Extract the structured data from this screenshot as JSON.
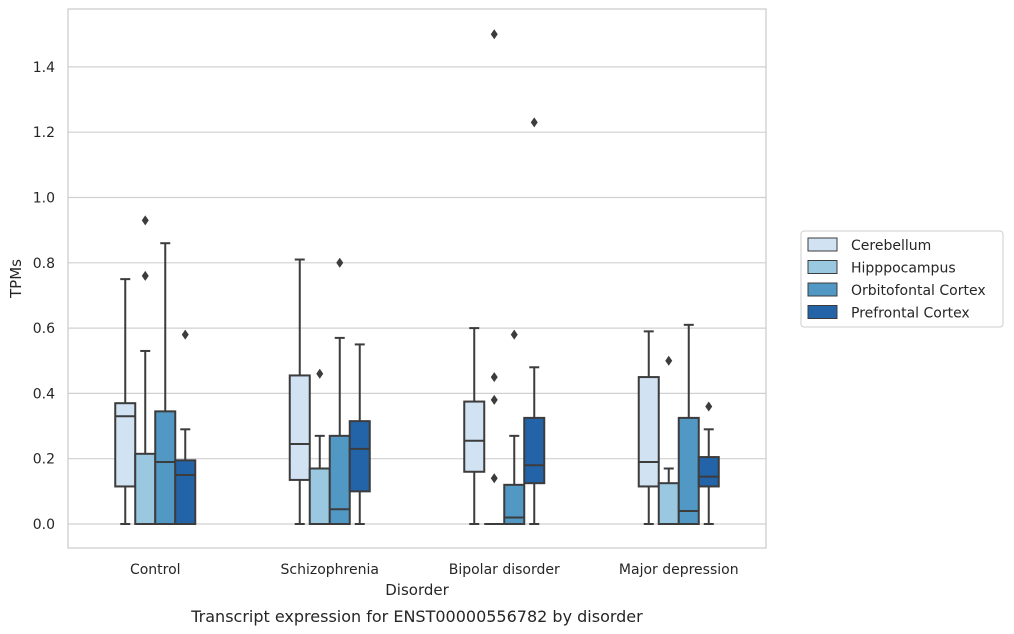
{
  "chart_data": {
    "type": "box",
    "title": "",
    "caption": "Transcript expression for ENST00000556782 by disorder",
    "xlabel": "Disorder",
    "ylabel": "TPMs",
    "ylim": [
      -0.075,
      1.58
    ],
    "yticks": [
      "0.0",
      "0.2",
      "0.4",
      "0.6",
      "0.8",
      "1.0",
      "1.2",
      "1.4"
    ],
    "grid": true,
    "legend_position": "right",
    "categories": [
      "Control",
      "Schizophrenia",
      "Bipolar disorder",
      "Major depression"
    ],
    "series": [
      {
        "name": "Cerebellum",
        "color": "#d1e2f2",
        "boxes": [
          {
            "whislo": 0.0,
            "q1": 0.115,
            "med": 0.33,
            "q3": 0.37,
            "whishi": 0.75,
            "fliers": []
          },
          {
            "whislo": 0.0,
            "q1": 0.135,
            "med": 0.245,
            "q3": 0.455,
            "whishi": 0.81,
            "fliers": []
          },
          {
            "whislo": 0.0,
            "q1": 0.16,
            "med": 0.255,
            "q3": 0.375,
            "whishi": 0.6,
            "fliers": []
          },
          {
            "whislo": 0.0,
            "q1": 0.115,
            "med": 0.19,
            "q3": 0.45,
            "whishi": 0.59,
            "fliers": []
          }
        ]
      },
      {
        "name": "Hipppocampus",
        "color": "#9ac8e0",
        "boxes": [
          {
            "whislo": 0.0,
            "q1": 0.0,
            "med": 0.0,
            "q3": 0.215,
            "whishi": 0.53,
            "fliers": [
              0.76,
              0.93
            ]
          },
          {
            "whislo": 0.0,
            "q1": 0.0,
            "med": 0.0,
            "q3": 0.17,
            "whishi": 0.27,
            "fliers": [
              0.46
            ]
          },
          {
            "whislo": 0.0,
            "q1": 0.0,
            "med": 0.0,
            "q3": 0.0,
            "whishi": 0.0,
            "fliers": [
              0.14,
              0.38,
              0.45,
              1.5
            ]
          },
          {
            "whislo": 0.0,
            "q1": 0.0,
            "med": 0.0,
            "q3": 0.125,
            "whishi": 0.17,
            "fliers": [
              0.5
            ]
          }
        ]
      },
      {
        "name": "Orbitofontal Cortex",
        "color": "#5198c5",
        "boxes": [
          {
            "whislo": 0.0,
            "q1": 0.0,
            "med": 0.19,
            "q3": 0.345,
            "whishi": 0.86,
            "fliers": []
          },
          {
            "whislo": 0.0,
            "q1": 0.0,
            "med": 0.045,
            "q3": 0.27,
            "whishi": 0.57,
            "fliers": [
              0.8
            ]
          },
          {
            "whislo": 0.0,
            "q1": 0.0,
            "med": 0.02,
            "q3": 0.12,
            "whishi": 0.27,
            "fliers": [
              0.58
            ]
          },
          {
            "whislo": 0.0,
            "q1": 0.0,
            "med": 0.04,
            "q3": 0.325,
            "whishi": 0.61,
            "fliers": []
          }
        ]
      },
      {
        "name": "Prefrontal Cortex",
        "color": "#2364a8",
        "boxes": [
          {
            "whislo": 0.0,
            "q1": 0.0,
            "med": 0.15,
            "q3": 0.195,
            "whishi": 0.29,
            "fliers": [
              0.58
            ]
          },
          {
            "whislo": 0.0,
            "q1": 0.1,
            "med": 0.23,
            "q3": 0.315,
            "whishi": 0.55,
            "fliers": []
          },
          {
            "whislo": 0.0,
            "q1": 0.125,
            "med": 0.18,
            "q3": 0.325,
            "whishi": 0.48,
            "fliers": [
              1.23
            ]
          },
          {
            "whislo": 0.0,
            "q1": 0.115,
            "med": 0.145,
            "q3": 0.205,
            "whishi": 0.29,
            "fliers": [
              0.36
            ]
          }
        ]
      }
    ]
  }
}
